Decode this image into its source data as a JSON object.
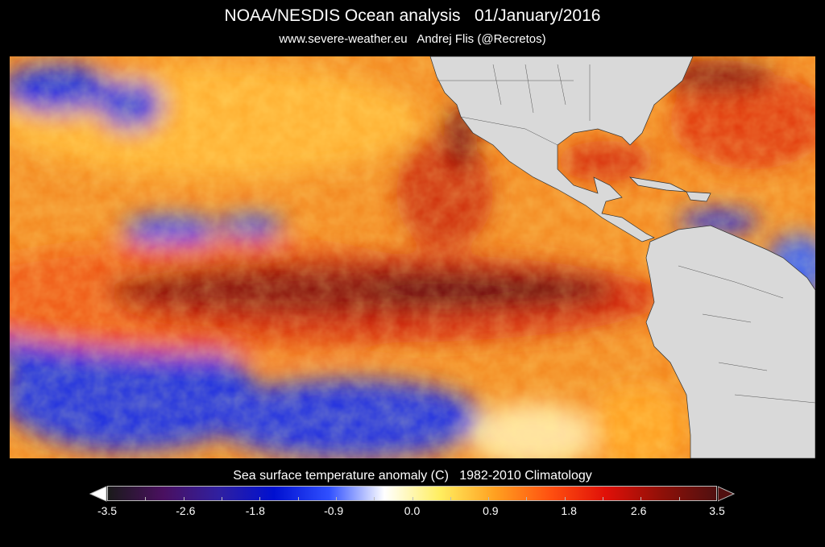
{
  "header": {
    "title": "NOAA/NESDIS Ocean analysis   01/January/2016",
    "subtitle": "www.severe-weather.eu   Andrej Flis (@Recretos)"
  },
  "map": {
    "variable": "Sea surface temperature anomaly",
    "land_color": "#d9d9d9",
    "ocean_bg_color": "#f08020"
  },
  "colorbar": {
    "title": "Sea surface temperature anomaly (C)   1982-2010 Climatology",
    "min": -3.5,
    "max": 3.5,
    "ticks": [
      "-3.5",
      "-2.6",
      "-1.8",
      "-0.9",
      "0.0",
      "0.9",
      "1.8",
      "2.6",
      "3.5"
    ],
    "colors": [
      "#1a1a1a",
      "#4a1060",
      "#3020a0",
      "#0010d0",
      "#3050ff",
      "#ffffff",
      "#ffee60",
      "#ffa020",
      "#ff5010",
      "#e01008",
      "#901008",
      "#501010"
    ]
  }
}
